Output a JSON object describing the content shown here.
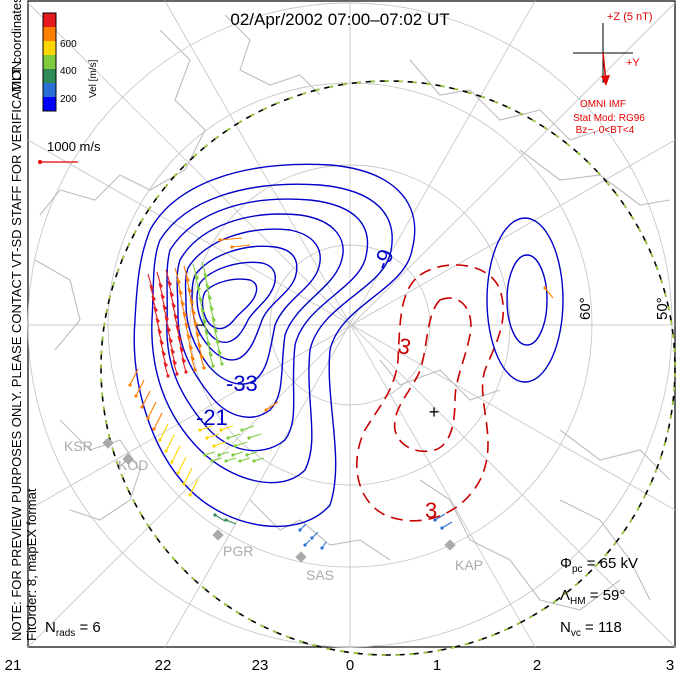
{
  "title": "02/Apr/2002  07:00–07:02  UT",
  "side_text": {
    "coordinates": "MLT coordinates",
    "note": "NOTE: FOR PREVIEW PURPOSES ONLY.  PLEASE CONTACT VT-SD STAFF FOR VERIFICATION.",
    "fit": "FitOrder: 8, mapEX format"
  },
  "colorbar": {
    "label": "Vel [m/s]",
    "ticks": [
      "600",
      "400",
      "200"
    ],
    "colors": [
      "#e41a1c",
      "#ff7f00",
      "#ffd700",
      "#7fcd3c",
      "#2e8b57",
      "#2a6fd6",
      "#0000ff"
    ]
  },
  "vector_scale": "1000 m/s",
  "imf": {
    "z_label": "+Z (5 nT)",
    "y_label": "+Y",
    "source": "OMNI IMF",
    "stat_mod": "Stat Mod: RG96",
    "condition": "Bz−, 0<BT<4"
  },
  "latitude_labels": [
    "60°",
    "50°"
  ],
  "contour_labels": {
    "negative": [
      "-9",
      "-33",
      "-21"
    ],
    "positive": [
      "3",
      "3"
    ]
  },
  "radars": [
    "KSR",
    "KOD",
    "PGR",
    "SAS",
    "KAP"
  ],
  "stats": {
    "phi_pc": "Φpc = 65 kV",
    "lambda_hm": "ΛHM = 59°",
    "n_vc": "Nvc = 118",
    "n_rads": "Nrads = 6"
  },
  "mlt_ticks": [
    "21",
    "22",
    "23",
    "0",
    "1",
    "2",
    "3"
  ],
  "colors": {
    "negative_fill": "#0000ff",
    "positive_fill": "#e07070",
    "negative_line": "#0000c8",
    "positive_line": "#c80000",
    "annotation": "#e00000"
  }
}
